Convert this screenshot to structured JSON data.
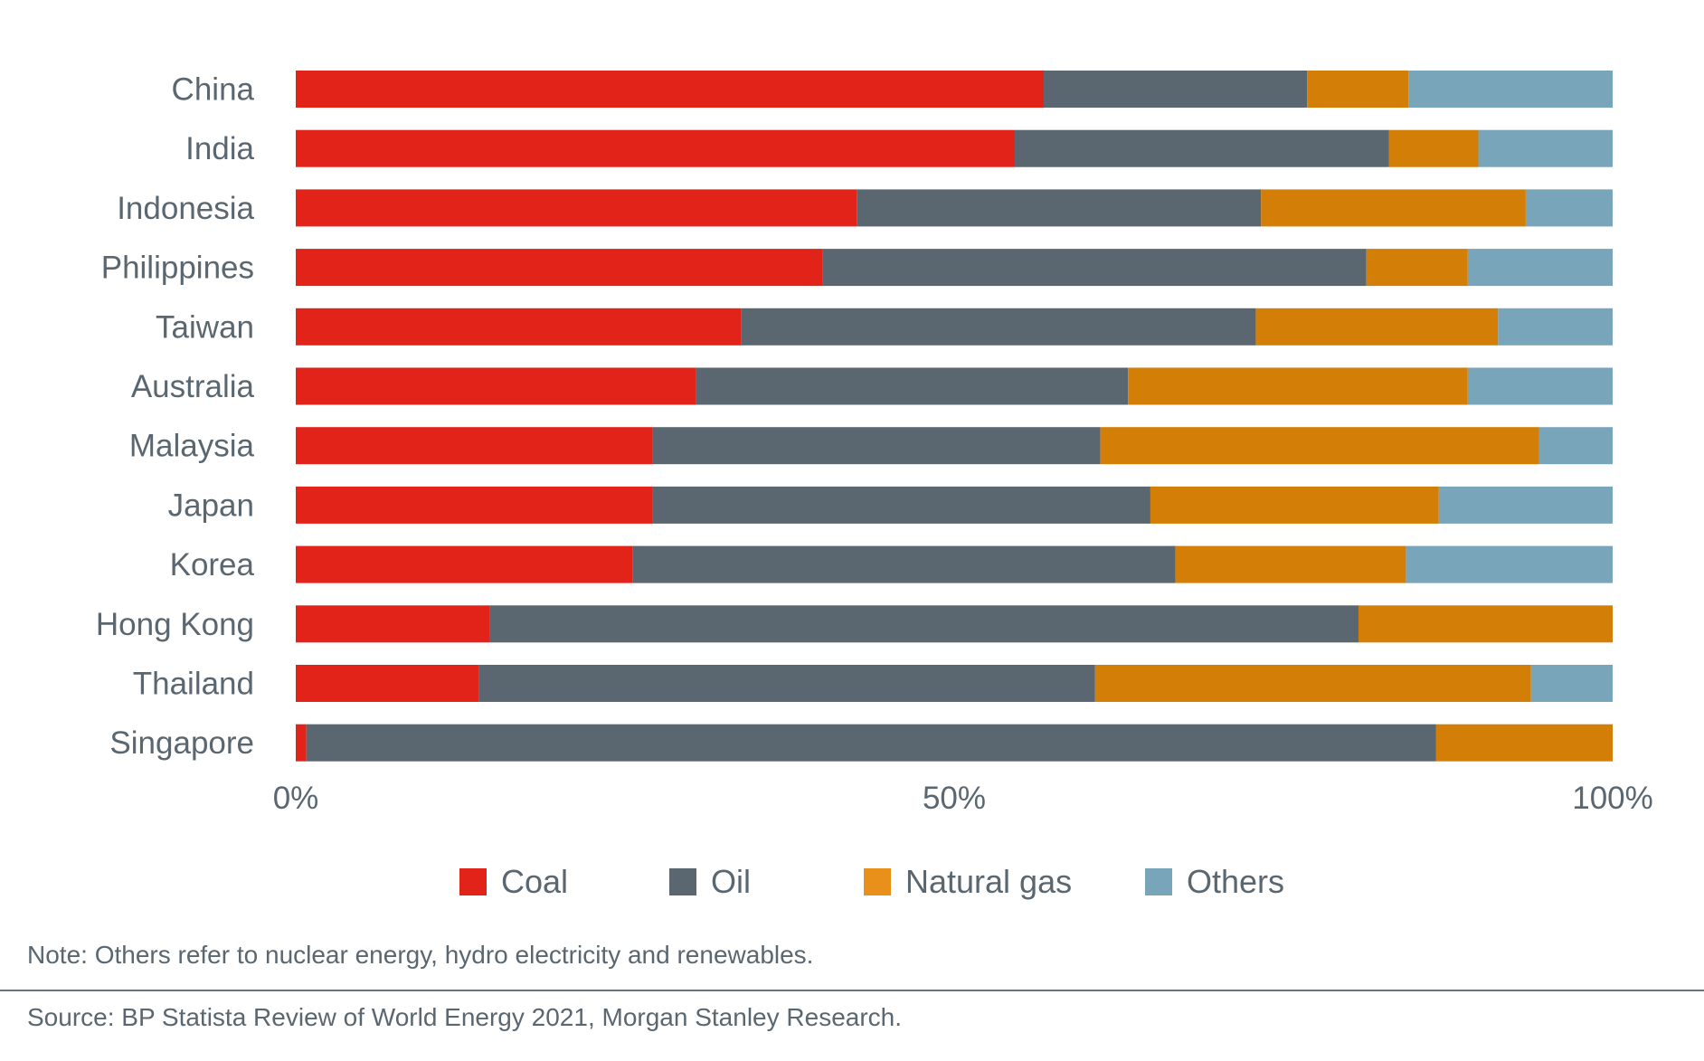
{
  "chart_data": {
    "type": "bar",
    "orientation": "horizontal",
    "stacked": true,
    "normalized": true,
    "title": "",
    "xlabel": "",
    "ylabel": "",
    "xlim": [
      0,
      100
    ],
    "x_ticks": [
      "0%",
      "50%",
      "100%"
    ],
    "x_tick_values": [
      0,
      50,
      100
    ],
    "grid": false,
    "legend_position": "bottom-center",
    "categories": [
      "China",
      "India",
      "Indonesia",
      "Philippines",
      "Taiwan",
      "Australia",
      "Malaysia",
      "Japan",
      "Korea",
      "Hong Kong",
      "Thailand",
      "Singapore"
    ],
    "series": [
      {
        "name": "Coal",
        "color": "#e2231a",
        "values": [
          56.8,
          54.6,
          42.6,
          40.0,
          33.8,
          30.4,
          27.1,
          27.1,
          25.6,
          14.7,
          13.9,
          0.8
        ]
      },
      {
        "name": "Oil",
        "color": "#5b6770",
        "values": [
          20.0,
          28.4,
          30.7,
          41.3,
          39.1,
          32.8,
          34.0,
          37.8,
          41.2,
          66.0,
          46.8,
          85.8
        ]
      },
      {
        "name": "Natural gas",
        "color": "#d37e06",
        "legend_color": "#e8901a",
        "values": [
          7.7,
          6.8,
          20.1,
          7.7,
          18.4,
          25.8,
          33.3,
          21.9,
          17.5,
          19.3,
          33.1,
          13.4
        ]
      },
      {
        "name": "Others",
        "color": "#79a5bb",
        "values": [
          15.5,
          10.2,
          6.6,
          11.0,
          8.7,
          11.0,
          5.6,
          13.2,
          15.7,
          0.0,
          6.2,
          0.0
        ]
      }
    ]
  },
  "legend": {
    "items": [
      {
        "label": "Coal",
        "color": "#e2231a"
      },
      {
        "label": "Oil",
        "color": "#5b6770"
      },
      {
        "label": "Natural gas",
        "color": "#e8901a"
      },
      {
        "label": "Others",
        "color": "#79a5bb"
      }
    ]
  },
  "footer": {
    "note": "Note: Others refer to nuclear energy, hydro electricity and renewables.",
    "source": "Source: BP Statista Review of World Energy 2021, Morgan Stanley Research."
  }
}
